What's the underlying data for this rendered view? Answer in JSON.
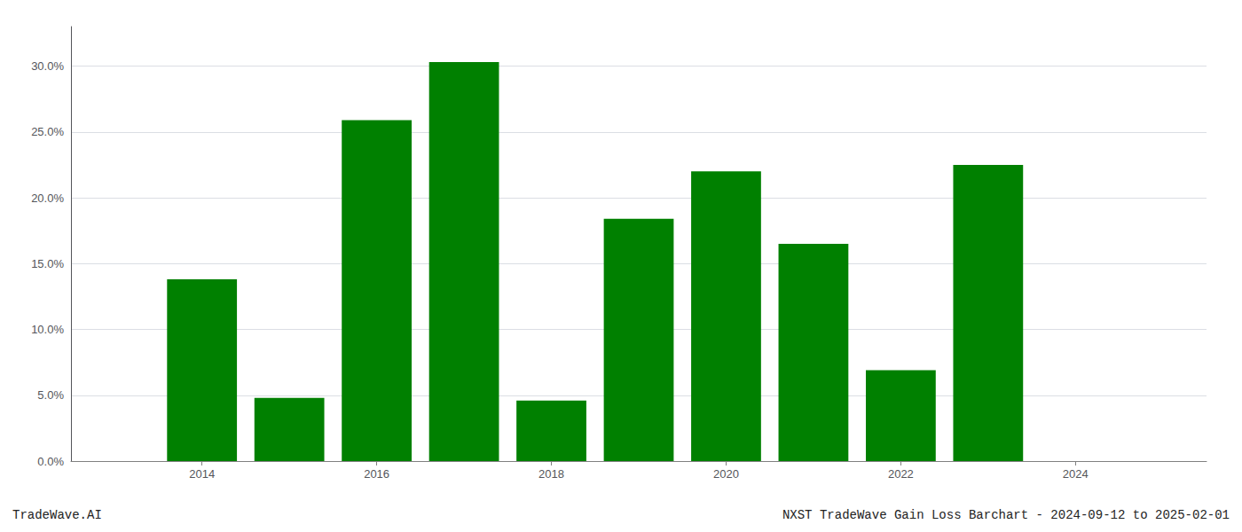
{
  "chart_data": {
    "type": "bar",
    "title": "NXST TradeWave Gain Loss Barchart - 2024-09-12 to 2025-02-01",
    "annotations": [
      "TradeWave.AI"
    ],
    "x": [
      2014,
      2015,
      2016,
      2017,
      2018,
      2019,
      2020,
      2021,
      2022,
      2023
    ],
    "values": [
      0.138,
      0.048,
      0.259,
      0.303,
      0.046,
      0.184,
      0.22,
      0.165,
      0.069,
      0.225
    ],
    "color": "#008000",
    "xlim": [
      2012.5,
      2025.5
    ],
    "xticks": [
      2014,
      2016,
      2018,
      2020,
      2022,
      2024
    ],
    "ylim": [
      0,
      0.33
    ],
    "yticks": [
      {
        "value": 0.0,
        "label": "0.0%"
      },
      {
        "value": 0.05,
        "label": "5.0%"
      },
      {
        "value": 0.1,
        "label": "10.0%"
      },
      {
        "value": 0.15,
        "label": "15.0%"
      },
      {
        "value": 0.2,
        "label": "20.0%"
      },
      {
        "value": 0.25,
        "label": "25.0%"
      },
      {
        "value": 0.3,
        "label": "30.0%"
      }
    ],
    "grid": true
  }
}
